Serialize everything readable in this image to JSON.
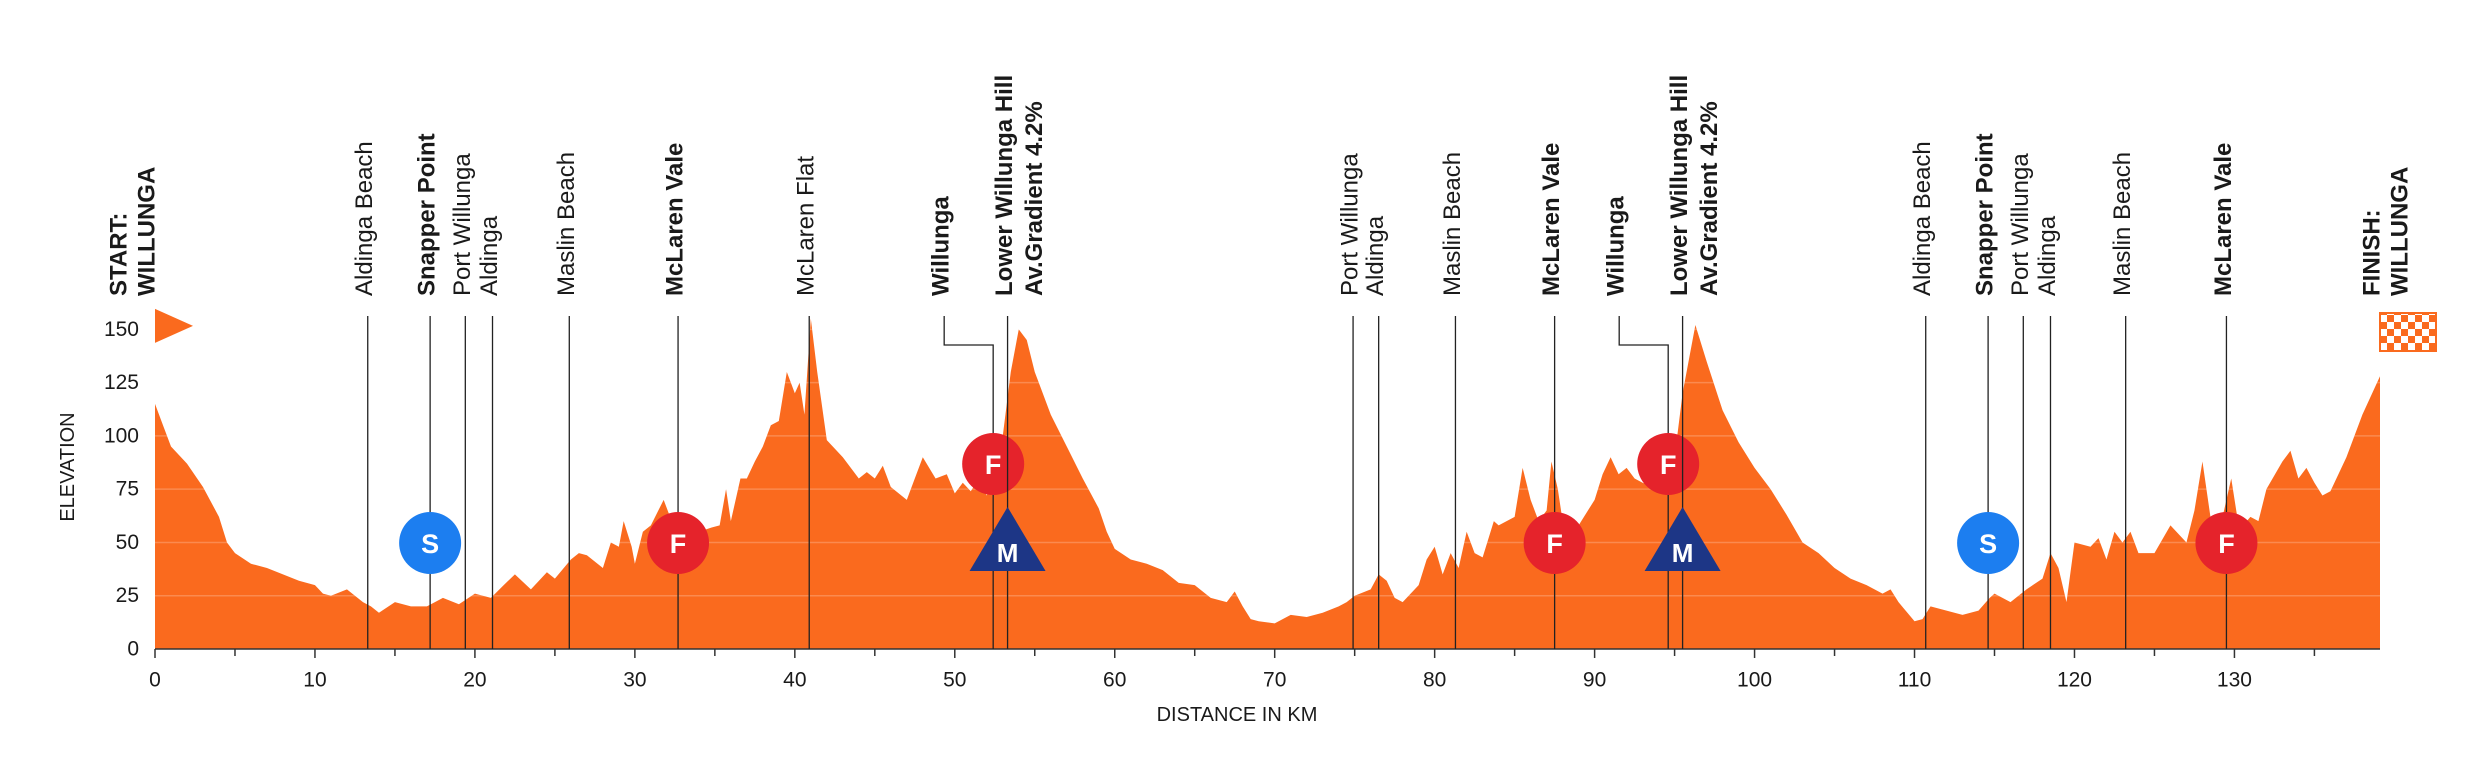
{
  "chart_data": {
    "type": "area",
    "color": "#fa6a1e",
    "xlabel": "DISTANCE IN KM",
    "ylabel": "ELEVATION",
    "xlim": [
      0,
      139.1
    ],
    "ylim": [
      0,
      160
    ],
    "xticks": [
      0,
      10,
      20,
      30,
      40,
      50,
      60,
      70,
      80,
      90,
      100,
      110,
      120,
      130
    ],
    "xminorticks": [
      5,
      15,
      25,
      35,
      45,
      55,
      65,
      75,
      85,
      95,
      105,
      115,
      125,
      135
    ],
    "yticks": [
      0,
      25,
      50,
      75,
      100,
      125,
      150
    ],
    "grid": true,
    "x": [
      0,
      0.5,
      1,
      2,
      3,
      4,
      4.5,
      5,
      6,
      7,
      8,
      9,
      10,
      10.5,
      11,
      12,
      13,
      13.5,
      14,
      15,
      16,
      17,
      18,
      19,
      20,
      21,
      21.8,
      22.5,
      23.5,
      24.5,
      25,
      26,
      26.5,
      27,
      28,
      28.5,
      29,
      29.3,
      29.8,
      30,
      30.5,
      31,
      31.8,
      32.3,
      32.7,
      33,
      34,
      34.8,
      35.3,
      35.7,
      36,
      36.6,
      37,
      37.5,
      38,
      38.5,
      39,
      39.5,
      40,
      40.3,
      40.6,
      41,
      41.4,
      42,
      43,
      43.5,
      44,
      44.5,
      45,
      45.5,
      46,
      47,
      47.5,
      48,
      48.8,
      49.5,
      50,
      50.5,
      51,
      51.5,
      52,
      52.5,
      53,
      53.5,
      54,
      54.5,
      55,
      56,
      57,
      58,
      59,
      59.5,
      60,
      61,
      62,
      63,
      64,
      65,
      65.5,
      66,
      67,
      67.5,
      68,
      68.5,
      69,
      70,
      71,
      72,
      73,
      74,
      74.5,
      75,
      76,
      76.5,
      77,
      77.5,
      78,
      79,
      79.5,
      80,
      80.5,
      81,
      81.5,
      82,
      82.5,
      83,
      83.7,
      84,
      85,
      85.5,
      86,
      86.5,
      87,
      87.3,
      87.7,
      88,
      89,
      90,
      90.5,
      91,
      91.5,
      92,
      92.5,
      93,
      94,
      94.5,
      95,
      95.5,
      96,
      96.3,
      97,
      98,
      99,
      100,
      101,
      102,
      103,
      104,
      105,
      106,
      107,
      108,
      108.5,
      109,
      110,
      110.5,
      111,
      112,
      113,
      114,
      114.7,
      115,
      116,
      117,
      118,
      118.5,
      119,
      119.5,
      120,
      121,
      121.5,
      122,
      122.5,
      123,
      123.5,
      124,
      125,
      126,
      127,
      127.5,
      128,
      128.5,
      129.2,
      129.8,
      130.3,
      131,
      131.5,
      132,
      133,
      133.5,
      134,
      134.5,
      135,
      135.5,
      136,
      137,
      138,
      139.1
    ],
    "values": [
      115,
      105,
      95,
      87,
      76,
      62,
      50,
      45,
      40,
      38,
      35,
      32,
      30,
      26,
      25,
      28,
      22,
      20,
      17,
      22,
      20,
      20,
      24,
      21,
      26,
      24,
      30,
      35,
      28,
      36,
      33,
      42,
      45,
      44,
      38,
      50,
      48,
      60,
      48,
      40,
      55,
      58,
      70,
      60,
      45,
      58,
      55,
      57,
      58,
      75,
      60,
      80,
      80,
      88,
      95,
      105,
      107,
      130,
      120,
      125,
      110,
      155,
      130,
      98,
      90,
      85,
      80,
      83,
      80,
      86,
      76,
      70,
      80,
      90,
      80,
      82,
      73,
      78,
      74,
      80,
      72,
      82,
      100,
      130,
      150,
      145,
      130,
      110,
      95,
      80,
      66,
      55,
      47,
      42,
      40,
      37,
      31,
      30,
      27,
      24,
      22,
      27,
      20,
      14,
      13,
      12,
      16,
      15,
      17,
      20,
      22,
      25,
      28,
      35,
      32,
      24,
      22,
      30,
      42,
      48,
      35,
      45,
      38,
      55,
      45,
      43,
      60,
      58,
      62,
      85,
      70,
      60,
      65,
      88,
      75,
      60,
      58,
      70,
      82,
      90,
      82,
      85,
      80,
      78,
      75,
      78,
      90,
      120,
      140,
      152,
      135,
      112,
      97,
      85,
      75,
      63,
      50,
      45,
      38,
      33,
      30,
      26,
      28,
      22,
      13,
      14,
      20,
      18,
      16,
      18,
      24,
      26,
      22,
      28,
      33,
      45,
      38,
      22,
      50,
      48,
      52,
      42,
      55,
      50,
      55,
      45,
      45,
      58,
      50,
      65,
      88,
      62,
      60,
      80,
      56,
      62,
      60,
      75,
      88,
      93,
      80,
      85,
      78,
      72,
      74,
      90,
      110,
      128
    ],
    "places": [
      {
        "km": 0,
        "label": [
          "START:",
          "WILLUNGA"
        ],
        "bold": true,
        "flag": "start"
      },
      {
        "km": 13.3,
        "label": [
          "Aldinga Beach"
        ],
        "bold": false
      },
      {
        "km": 17.2,
        "label": [
          "Snapper Point"
        ],
        "bold": true,
        "badge": "S"
      },
      {
        "km": 19.4,
        "label": [
          "Port Willunga"
        ],
        "bold": false
      },
      {
        "km": 21.1,
        "label": [
          "Aldinga"
        ],
        "bold": false
      },
      {
        "km": 25.9,
        "label": [
          "Maslin Beach"
        ],
        "bold": false
      },
      {
        "km": 32.7,
        "label": [
          "McLaren Vale"
        ],
        "bold": true,
        "badge": "F"
      },
      {
        "km": 40.9,
        "label": [
          "McLaren Flat"
        ],
        "bold": false
      },
      {
        "km": 52.4,
        "label": [
          "Willunga"
        ],
        "bold": true,
        "badge": "F"
      },
      {
        "km": 53.3,
        "label": [
          "Lower Willunga Hill",
          "Av.Gradient 4.2%"
        ],
        "bold": true,
        "badge": "M"
      },
      {
        "km": 74.9,
        "label": [
          "Port Willunga"
        ],
        "bold": false
      },
      {
        "km": 76.5,
        "label": [
          "Aldinga"
        ],
        "bold": false
      },
      {
        "km": 81.3,
        "label": [
          "Maslin Beach"
        ],
        "bold": false
      },
      {
        "km": 87.5,
        "label": [
          "McLaren Vale"
        ],
        "bold": true,
        "badge": "F"
      },
      {
        "km": 94.6,
        "label": [
          "Willunga"
        ],
        "bold": true,
        "badge": "F"
      },
      {
        "km": 95.5,
        "label": [
          "Lower Willunga Hill",
          "Av.Gradient 4.2%"
        ],
        "bold": true,
        "badge": "M"
      },
      {
        "km": 110.7,
        "label": [
          "Aldinga Beach"
        ],
        "bold": false
      },
      {
        "km": 114.6,
        "label": [
          "Snapper Point"
        ],
        "bold": true,
        "badge": "S"
      },
      {
        "km": 116.8,
        "label": [
          "Port Willunga"
        ],
        "bold": false
      },
      {
        "km": 118.5,
        "label": [
          "Aldinga"
        ],
        "bold": false
      },
      {
        "km": 123.2,
        "label": [
          "Maslin Beach"
        ],
        "bold": false
      },
      {
        "km": 129.5,
        "label": [
          "McLaren Vale"
        ],
        "bold": true,
        "badge": "F"
      },
      {
        "km": 139.1,
        "label": [
          "FINISH:",
          "WILLUNGA"
        ],
        "bold": true,
        "flag": "finish"
      }
    ]
  }
}
